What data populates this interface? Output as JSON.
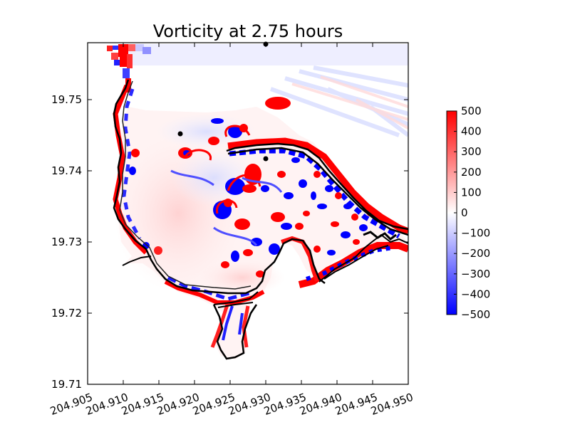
{
  "chart_data": {
    "type": "heatmap",
    "title": "Vorticity at 2.75 hours",
    "xlabel": "",
    "ylabel": "",
    "xlim": [
      204.905,
      204.95
    ],
    "ylim": [
      19.71,
      19.758
    ],
    "x_ticks": [
      "204.905",
      "204.910",
      "204.915",
      "204.920",
      "204.925",
      "204.930",
      "204.935",
      "204.940",
      "204.945",
      "204.950"
    ],
    "y_ticks": [
      "19.71",
      "19.72",
      "19.73",
      "19.74",
      "19.75"
    ],
    "colorbar": {
      "min": -500,
      "max": 500,
      "colors": [
        "#0000ff",
        "#ffffff",
        "#ff0000"
      ],
      "ticks": [
        "500",
        "400",
        "300",
        "200",
        "100",
        "0",
        "−100",
        "−200",
        "−300",
        "−400",
        "−500"
      ]
    },
    "grid": false,
    "markers": [
      {
        "x": 204.93,
        "y": 19.7578
      },
      {
        "x": 204.918,
        "y": 19.7452
      },
      {
        "x": 204.93,
        "y": 19.7417
      }
    ]
  }
}
